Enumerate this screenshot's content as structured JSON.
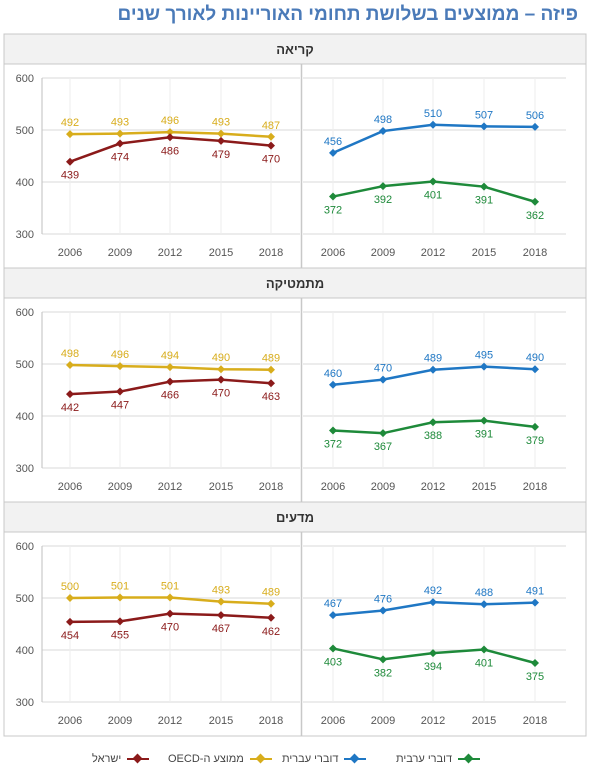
{
  "page": {
    "title": "פיזה – ממוצעים בשלושת תחומי האוריינות לאורך שנים"
  },
  "colors": {
    "israel": "#8b1a1a",
    "oecd": "#d8ad1c",
    "hebrew": "#1f77c4",
    "arabic": "#1e8a3a",
    "panel_header_bg": "#f2f2f2",
    "grid": "#d9d9d9",
    "border": "#c8c8c8"
  },
  "legend": [
    {
      "key": "arabic",
      "label": "דוברי ערבית"
    },
    {
      "key": "hebrew",
      "label": "דוברי עברית"
    },
    {
      "key": "oecd",
      "label": "ממוצע ה-OECD"
    },
    {
      "key": "israel",
      "label": "ישראל"
    }
  ],
  "chart_data": [
    {
      "type": "line",
      "title": "קריאה",
      "x": [
        "2006",
        "2009",
        "2012",
        "2015",
        "2018"
      ],
      "ylim": [
        300,
        600
      ],
      "yticks": [
        300,
        400,
        500,
        600
      ],
      "grid": true,
      "legend_position": "bottom",
      "facets": [
        {
          "series": [
            {
              "key": "oecd",
              "name": "ממוצע ה-OECD",
              "values": [
                492,
                493,
                496,
                493,
                487
              ]
            },
            {
              "key": "israel",
              "name": "ישראל",
              "values": [
                439,
                474,
                486,
                479,
                470
              ]
            }
          ]
        },
        {
          "series": [
            {
              "key": "hebrew",
              "name": "דוברי עברית",
              "values": [
                456,
                498,
                510,
                507,
                506
              ]
            },
            {
              "key": "arabic",
              "name": "דוברי ערבית",
              "values": [
                372,
                392,
                401,
                391,
                362
              ]
            }
          ]
        }
      ]
    },
    {
      "type": "line",
      "title": "מתמטיקה",
      "x": [
        "2006",
        "2009",
        "2012",
        "2015",
        "2018"
      ],
      "ylim": [
        300,
        600
      ],
      "yticks": [
        300,
        400,
        500,
        600
      ],
      "grid": true,
      "legend_position": "bottom",
      "facets": [
        {
          "series": [
            {
              "key": "oecd",
              "name": "ממוצע ה-OECD",
              "values": [
                498,
                496,
                494,
                490,
                489
              ]
            },
            {
              "key": "israel",
              "name": "ישראל",
              "values": [
                442,
                447,
                466,
                470,
                463
              ]
            }
          ]
        },
        {
          "series": [
            {
              "key": "hebrew",
              "name": "דוברי עברית",
              "values": [
                460,
                470,
                489,
                495,
                490
              ]
            },
            {
              "key": "arabic",
              "name": "דוברי ערבית",
              "values": [
                372,
                367,
                388,
                391,
                379
              ]
            }
          ]
        }
      ]
    },
    {
      "type": "line",
      "title": "מדעים",
      "x": [
        "2006",
        "2009",
        "2012",
        "2015",
        "2018"
      ],
      "ylim": [
        300,
        600
      ],
      "yticks": [
        300,
        400,
        500,
        600
      ],
      "grid": true,
      "legend_position": "bottom",
      "facets": [
        {
          "series": [
            {
              "key": "oecd",
              "name": "ממוצע ה-OECD",
              "values": [
                500,
                501,
                501,
                493,
                489
              ]
            },
            {
              "key": "israel",
              "name": "ישראל",
              "values": [
                454,
                455,
                470,
                467,
                462
              ]
            }
          ]
        },
        {
          "series": [
            {
              "key": "hebrew",
              "name": "דוברי עברית",
              "values": [
                467,
                476,
                492,
                488,
                491
              ]
            },
            {
              "key": "arabic",
              "name": "דוברי ערבית",
              "values": [
                403,
                382,
                394,
                401,
                375
              ]
            }
          ]
        }
      ]
    }
  ]
}
